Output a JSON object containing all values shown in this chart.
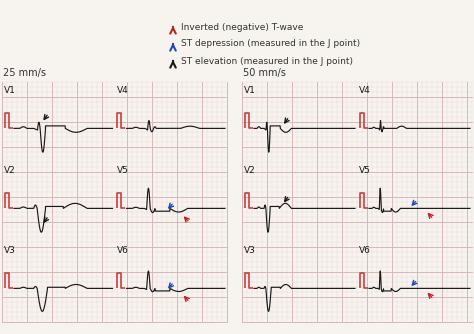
{
  "title_left": "25 mm/s",
  "title_right": "50 mm/s",
  "bg_color": "#f7f4f0",
  "grid_minor_color": "#e8d0d0",
  "grid_major_color": "#d8b8b8",
  "ecg_color": "#1a1a1a",
  "ref_color": "#c84040",
  "legend": [
    {
      "label": "ST elevation (measured in the J point)",
      "color": "#1a1a1a"
    },
    {
      "label": "ST depression (measured in the J point)",
      "color": "#2244bb"
    },
    {
      "label": "Inverted (negative) T-wave",
      "color": "#bb2222"
    }
  ],
  "arrow_black": "#1a1a1a",
  "arrow_blue": "#2244bb",
  "arrow_red": "#bb2222"
}
